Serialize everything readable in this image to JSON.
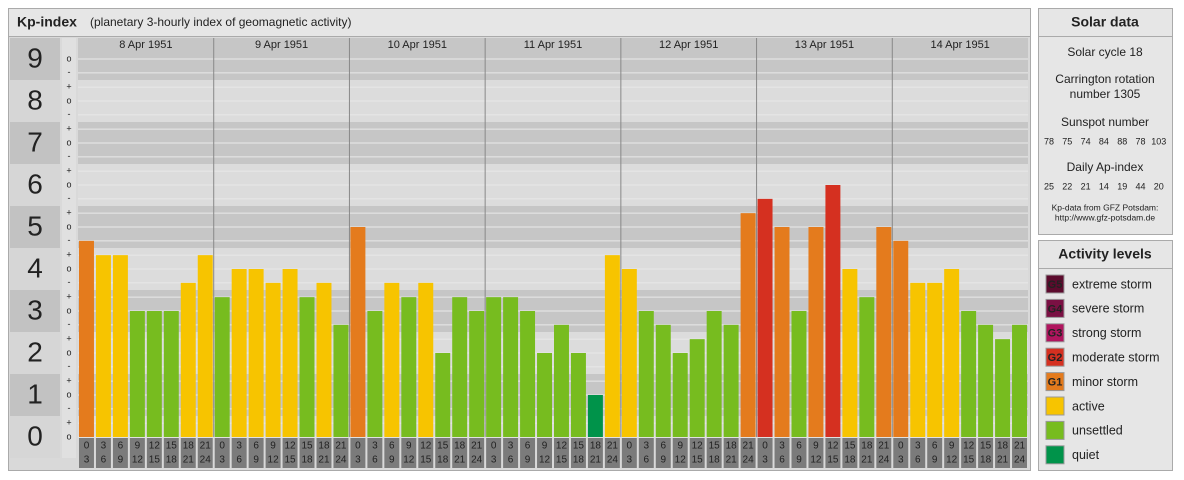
{
  "chart_data": {
    "type": "bar",
    "title": "Kp-index",
    "subtitle": "(planetary 3-hourly index of geomagnetic activity)",
    "ylim": [
      0,
      9.5
    ],
    "yticks": [
      0,
      1,
      2,
      3,
      4,
      5,
      6,
      7,
      8,
      9
    ],
    "minor_yticks": [
      {
        "value": 0,
        "label": "o"
      },
      {
        "value": 0.33,
        "label": "+"
      },
      {
        "value": 0.67,
        "label": "-"
      },
      {
        "value": 1,
        "label": "o"
      },
      {
        "value": 1.33,
        "label": "+"
      },
      {
        "value": 1.67,
        "label": "-"
      },
      {
        "value": 2,
        "label": "o"
      },
      {
        "value": 2.33,
        "label": "+"
      },
      {
        "value": 2.67,
        "label": "-"
      },
      {
        "value": 3,
        "label": "o"
      },
      {
        "value": 3.33,
        "label": "+"
      },
      {
        "value": 3.67,
        "label": "-"
      },
      {
        "value": 4,
        "label": "o"
      },
      {
        "value": 4.33,
        "label": "+"
      },
      {
        "value": 4.67,
        "label": "-"
      },
      {
        "value": 5,
        "label": "o"
      },
      {
        "value": 5.33,
        "label": "+"
      },
      {
        "value": 5.67,
        "label": "-"
      },
      {
        "value": 6,
        "label": "o"
      },
      {
        "value": 6.33,
        "label": "+"
      },
      {
        "value": 6.67,
        "label": "-"
      },
      {
        "value": 7,
        "label": "o"
      },
      {
        "value": 7.33,
        "label": "+"
      },
      {
        "value": 7.67,
        "label": "-"
      },
      {
        "value": 8,
        "label": "o"
      },
      {
        "value": 8.33,
        "label": "+"
      },
      {
        "value": 8.67,
        "label": "-"
      },
      {
        "value": 9,
        "label": "o"
      }
    ],
    "grid": true,
    "hour_labels": [
      [
        "0",
        "3"
      ],
      [
        "3",
        "6"
      ],
      [
        "6",
        "9"
      ],
      [
        "9",
        "12"
      ],
      [
        "12",
        "15"
      ],
      [
        "15",
        "18"
      ],
      [
        "18",
        "21"
      ],
      [
        "21",
        "24"
      ]
    ],
    "days": [
      {
        "label": "8 Apr 1951",
        "values": [
          4.67,
          4.33,
          4.33,
          3,
          3,
          3,
          3.67,
          4.33
        ],
        "colors": [
          "#e47b1d",
          "#f7c400",
          "#f7c400",
          "#77bc1f",
          "#77bc1f",
          "#77bc1f",
          "#f7c400",
          "#f7c400"
        ]
      },
      {
        "label": "9 Apr 1951",
        "values": [
          3.33,
          4,
          4,
          3.67,
          4,
          3.33,
          3.67,
          2.67
        ],
        "colors": [
          "#77bc1f",
          "#f7c400",
          "#f7c400",
          "#f7c400",
          "#f7c400",
          "#77bc1f",
          "#f7c400",
          "#77bc1f"
        ]
      },
      {
        "label": "10 Apr 1951",
        "values": [
          5,
          3,
          3.67,
          3.33,
          3.67,
          2,
          3.33,
          3
        ],
        "colors": [
          "#e47b1d",
          "#77bc1f",
          "#f7c400",
          "#77bc1f",
          "#f7c400",
          "#77bc1f",
          "#77bc1f",
          "#77bc1f"
        ]
      },
      {
        "label": "11 Apr 1951",
        "values": [
          3.33,
          3.33,
          3,
          2,
          2.67,
          2,
          1,
          4.33
        ],
        "colors": [
          "#77bc1f",
          "#77bc1f",
          "#77bc1f",
          "#77bc1f",
          "#77bc1f",
          "#77bc1f",
          "#00934a",
          "#f7c400"
        ]
      },
      {
        "label": "12 Apr 1951",
        "values": [
          4,
          3,
          2.67,
          2,
          2.33,
          3,
          2.67,
          5.33
        ],
        "colors": [
          "#f7c400",
          "#77bc1f",
          "#77bc1f",
          "#77bc1f",
          "#77bc1f",
          "#77bc1f",
          "#77bc1f",
          "#e47b1d"
        ]
      },
      {
        "label": "13 Apr 1951",
        "values": [
          5.67,
          5,
          3,
          5,
          6,
          4,
          3.33,
          5
        ],
        "colors": [
          "#d53020",
          "#e47b1d",
          "#77bc1f",
          "#e47b1d",
          "#d53020",
          "#f7c400",
          "#77bc1f",
          "#e47b1d"
        ]
      },
      {
        "label": "14 Apr 1951",
        "values": [
          4.67,
          3.67,
          3.67,
          4,
          3,
          2.67,
          2.33,
          2.67
        ],
        "colors": [
          "#e47b1d",
          "#f7c400",
          "#f7c400",
          "#f7c400",
          "#77bc1f",
          "#77bc1f",
          "#77bc1f",
          "#77bc1f"
        ]
      }
    ],
    "legend": {
      "title": "Activity levels",
      "items": [
        {
          "code": "G5",
          "name": "extreme storm",
          "color": "#5c0b2d"
        },
        {
          "code": "G4",
          "name": "severe storm",
          "color": "#7a1043"
        },
        {
          "code": "G3",
          "name": "strong storm",
          "color": "#b0155e"
        },
        {
          "code": "G2",
          "name": "moderate storm",
          "color": "#d53020"
        },
        {
          "code": "G1",
          "name": "minor storm",
          "color": "#e47b1d"
        },
        {
          "name": "active",
          "color": "#f7c400"
        },
        {
          "name": "unsettled",
          "color": "#77bc1f"
        },
        {
          "name": "quiet",
          "color": "#00934a"
        }
      ]
    }
  },
  "solar_data": {
    "title": "Solar data",
    "solar_cycle": "Solar cycle 18",
    "carrington": [
      "Carrington rotation",
      "number 1305"
    ],
    "sunspot_title": "Sunspot number",
    "sunspot_numbers": [
      78,
      75,
      74,
      84,
      88,
      78,
      103
    ],
    "ap_title": "Daily Ap-index",
    "ap_values": [
      25,
      22,
      21,
      14,
      19,
      44,
      20
    ],
    "source": [
      "Kp-data from GFZ Potsdam:",
      "http://www.gfz-potsdam.de"
    ]
  }
}
